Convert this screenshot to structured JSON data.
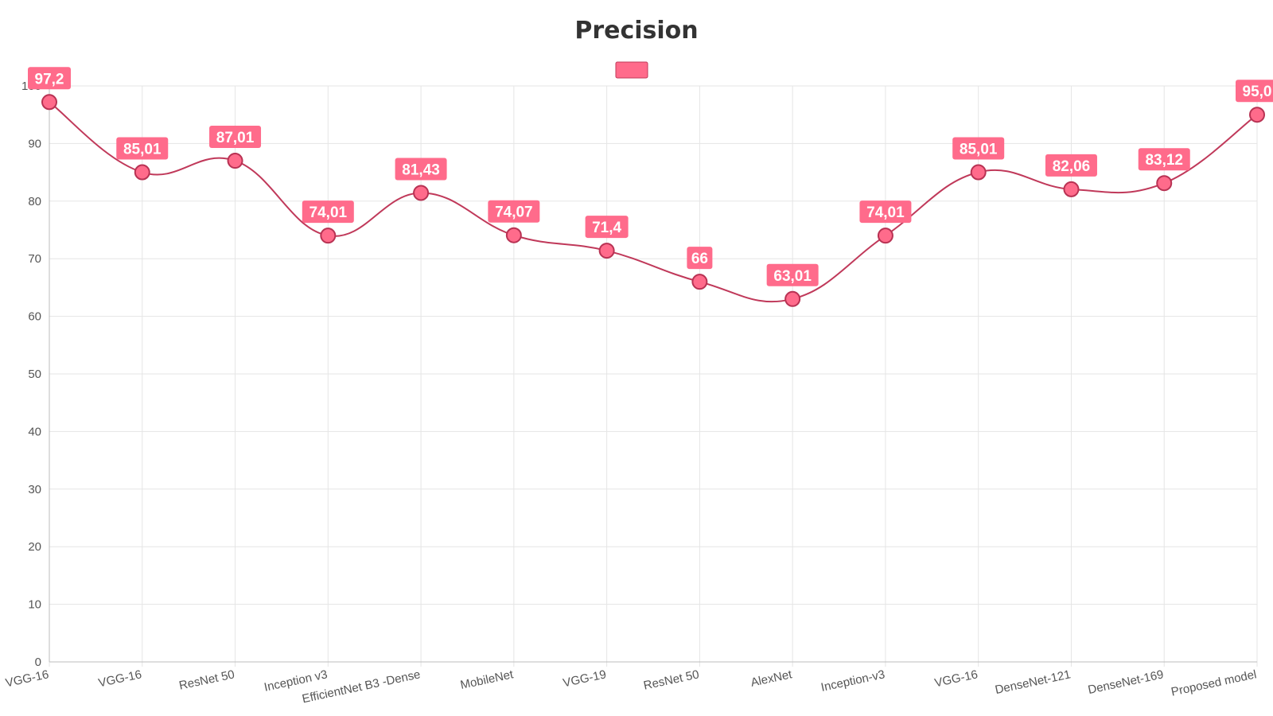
{
  "chart_data": {
    "type": "line",
    "title": "Precision",
    "categories": [
      "VGG-16",
      "VGG-16",
      "ResNet 50",
      "Inception v3",
      "EfficientNet B3 -Dense",
      "MobileNet",
      "VGG-19",
      "ResNet 50",
      "AlexNet",
      "Inception-v3",
      "VGG-16",
      "DenseNet-121",
      "DenseNet-169",
      "Proposed model"
    ],
    "series": [
      {
        "values": [
          97.2,
          85.01,
          87.01,
          74.01,
          81.43,
          74.07,
          71.4,
          66,
          63.01,
          74.01,
          85.01,
          82.06,
          83.12,
          95.0
        ],
        "labels": [
          "97,2",
          "85,01",
          "87,01",
          "74,01",
          "81,43",
          "74,07",
          "71,4",
          "66",
          "63,01",
          "74,01",
          "85,01",
          "82,06",
          "83,12",
          "95,0"
        ]
      }
    ],
    "ylim": [
      0,
      100
    ],
    "yticks": [
      "0",
      "10",
      "20",
      "30",
      "40",
      "50",
      "60",
      "70",
      "80",
      "90",
      "100"
    ],
    "grid": true,
    "legend_position": "top-center",
    "colors": {
      "fill": "#ff6b8b",
      "line": "#c0395a",
      "label_bg": "#ff6b8b"
    }
  }
}
